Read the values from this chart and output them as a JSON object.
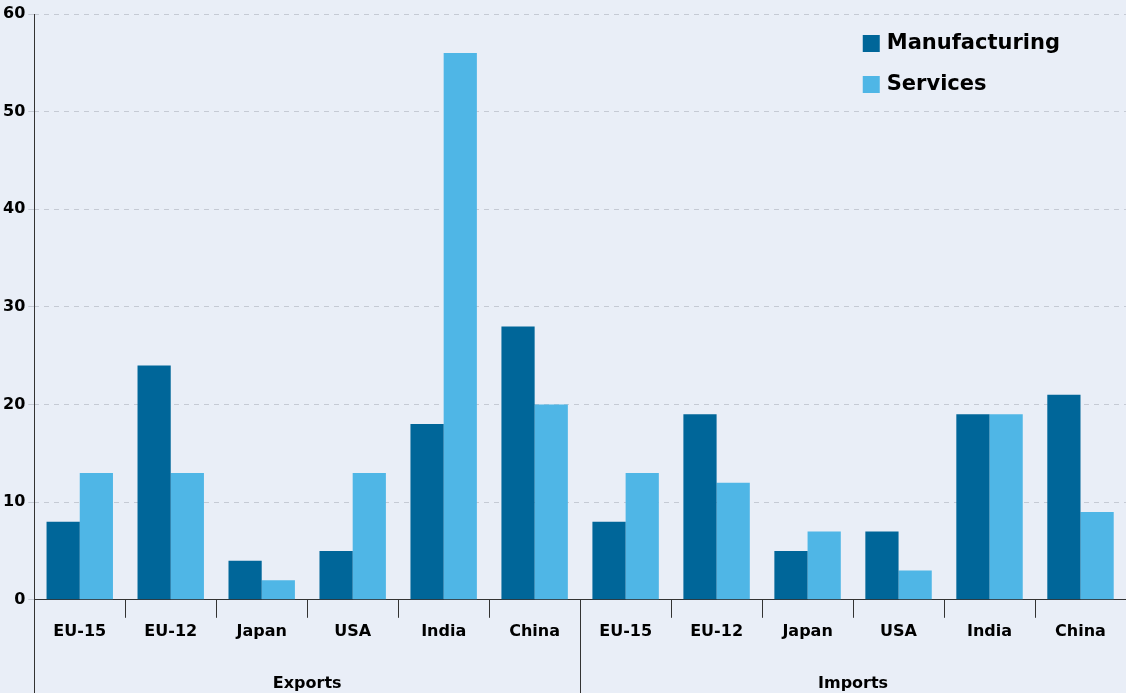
{
  "chart_data": {
    "type": "bar",
    "categories": [
      "EU-15",
      "EU-12",
      "Japan",
      "USA",
      "India",
      "China",
      "EU-15",
      "EU-12",
      "Japan",
      "USA",
      "India",
      "China"
    ],
    "series": [
      {
        "name": "Manufacturing",
        "color": "#006699",
        "values": [
          8,
          24,
          4,
          5,
          18,
          28,
          8,
          19,
          5,
          7,
          19,
          21
        ]
      },
      {
        "name": "Services",
        "color": "#4fb6e6",
        "values": [
          13,
          13,
          2,
          13,
          56,
          20,
          13,
          12,
          7,
          3,
          19,
          9
        ]
      }
    ],
    "ylim": [
      0,
      60
    ],
    "yticks": [
      0,
      10,
      20,
      30,
      40,
      50,
      60
    ],
    "grid": "y",
    "legend": "top right",
    "annotations": [
      "Exports",
      "Imports"
    ]
  }
}
